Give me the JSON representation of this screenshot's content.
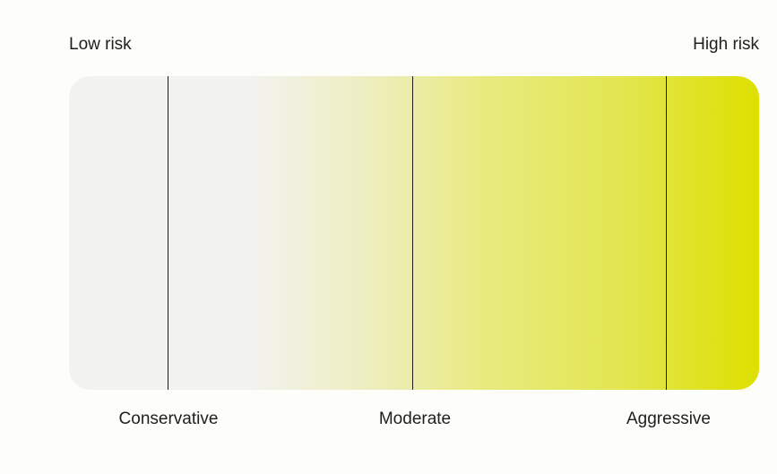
{
  "scale": {
    "low_label": "Low risk",
    "high_label": "High risk"
  },
  "tiers": [
    {
      "label": "Conservative"
    },
    {
      "label": "Moderate"
    },
    {
      "label": "Aggressive"
    }
  ],
  "colors": {
    "background": "#FDFDFA",
    "gradient_start": "#F2F2F0",
    "gradient_end": "#DDE000",
    "text": "#1F1F1F",
    "divider": "#1A1A1A"
  }
}
